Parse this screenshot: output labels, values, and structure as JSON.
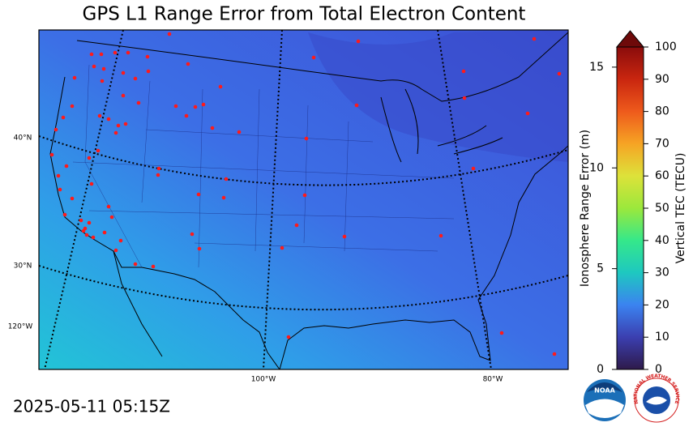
{
  "title": "GPS L1 Range Error from Total Electron Content",
  "timestamp": "2025-05-11 05:15Z",
  "map": {
    "lat_labels": [
      "40°N",
      "30°N"
    ],
    "lon_labels": [
      "120°W",
      "100°W",
      "80°W"
    ]
  },
  "colorbar": {
    "left_label": "Ionosphere Range Error (m)",
    "left_lim": [
      0,
      16
    ],
    "left_ticks": [
      0,
      5,
      10,
      15
    ],
    "right_label": "Vertical TEC (TECU)",
    "right_lim": [
      0,
      100
    ],
    "right_ticks": [
      0,
      10,
      20,
      30,
      40,
      50,
      60,
      70,
      80,
      90,
      100
    ]
  },
  "logos": {
    "noaa": "NOAA",
    "nws": "NATIONAL WEATHER SERVICE"
  }
}
